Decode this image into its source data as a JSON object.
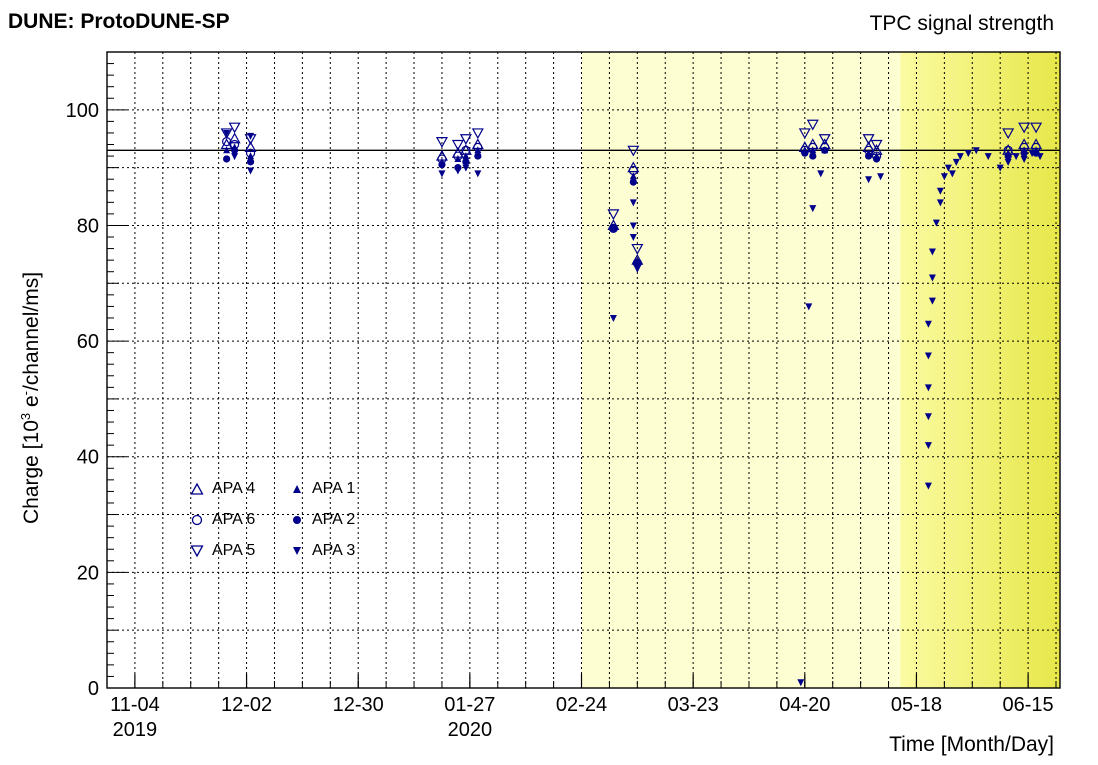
{
  "header": {
    "left_title": "DUNE: ProtoDUNE-SP",
    "right_title": "TPC signal strength"
  },
  "colors": {
    "marker": "#00008b",
    "frame": "#000000",
    "band_light": "#fefed3",
    "band_mid": "#fbfba5",
    "band_gradient_end": "#e7e74a"
  },
  "chart_data": {
    "type": "scatter",
    "xlabel": "Time [Month/Day]",
    "ylabel": "Charge [10³ e⁻/channel/ms]",
    "ylabel_parts": {
      "pre": "Charge [10",
      "sup1": "3",
      "mid": " e",
      "sup2": "-",
      "post": "/channel/ms]"
    },
    "x_axis_type": "date",
    "xlim": [
      "2019-10-28",
      "2020-06-23"
    ],
    "ylim": [
      0,
      110
    ],
    "grid": true,
    "x_ticks": [
      {
        "date": "2019-11-04",
        "label": "11-04",
        "year": "2019"
      },
      {
        "date": "2019-12-02",
        "label": "12-02"
      },
      {
        "date": "2019-12-30",
        "label": "12-30"
      },
      {
        "date": "2020-01-27",
        "label": "01-27",
        "year": "2020"
      },
      {
        "date": "2020-02-24",
        "label": "02-24"
      },
      {
        "date": "2020-03-23",
        "label": "03-23"
      },
      {
        "date": "2020-04-20",
        "label": "04-20"
      },
      {
        "date": "2020-05-18",
        "label": "05-18"
      },
      {
        "date": "2020-06-15",
        "label": "06-15"
      }
    ],
    "y_ticks": [
      0,
      20,
      40,
      60,
      80,
      100
    ],
    "reference_line": 93,
    "shaded_regions": [
      {
        "from": "2020-02-24",
        "to": "2020-05-14",
        "style": "light"
      },
      {
        "from": "2020-05-14",
        "to": "2020-06-23",
        "style": "gradient"
      }
    ],
    "legend_position": "lower-left",
    "series": [
      {
        "name": "APA 4",
        "marker": "triangle-up-open",
        "points": [
          [
            "2019-11-27",
            94
          ],
          [
            "2019-11-29",
            95
          ],
          [
            "2019-12-03",
            93.5
          ],
          [
            "2020-01-20",
            92
          ],
          [
            "2020-01-24",
            92.5
          ],
          [
            "2020-01-26",
            93
          ],
          [
            "2020-01-29",
            94
          ],
          [
            "2020-03-03",
            80
          ],
          [
            "2020-03-08",
            90
          ],
          [
            "2020-03-09",
            74
          ],
          [
            "2020-04-20",
            93.5
          ],
          [
            "2020-04-22",
            94
          ],
          [
            "2020-04-25",
            94
          ],
          [
            "2020-05-06",
            93.5
          ],
          [
            "2020-05-08",
            93
          ],
          [
            "2020-06-10",
            93
          ],
          [
            "2020-06-14",
            94
          ],
          [
            "2020-06-17",
            94
          ]
        ]
      },
      {
        "name": "APA 6",
        "marker": "circle-open",
        "points": [
          [
            "2019-11-27",
            94.5
          ],
          [
            "2019-11-29",
            94
          ],
          [
            "2019-12-03",
            92.5
          ],
          [
            "2020-01-20",
            91.5
          ],
          [
            "2020-01-24",
            92
          ],
          [
            "2020-01-26",
            93
          ],
          [
            "2020-01-29",
            93.5
          ],
          [
            "2020-03-03",
            79.5
          ],
          [
            "2020-03-08",
            89.5
          ],
          [
            "2020-03-09",
            73.5
          ],
          [
            "2020-04-20",
            93
          ],
          [
            "2020-04-22",
            93.5
          ],
          [
            "2020-04-25",
            93.5
          ],
          [
            "2020-05-06",
            93
          ],
          [
            "2020-05-08",
            92
          ],
          [
            "2020-06-10",
            93
          ],
          [
            "2020-06-14",
            93.5
          ],
          [
            "2020-06-17",
            93.5
          ]
        ]
      },
      {
        "name": "APA 5",
        "marker": "triangle-down-open",
        "points": [
          [
            "2019-11-27",
            96
          ],
          [
            "2019-11-29",
            97
          ],
          [
            "2019-12-03",
            95
          ],
          [
            "2020-01-20",
            94.5
          ],
          [
            "2020-01-24",
            94
          ],
          [
            "2020-01-26",
            95
          ],
          [
            "2020-01-29",
            96
          ],
          [
            "2020-03-03",
            82
          ],
          [
            "2020-03-08",
            93
          ],
          [
            "2020-03-09",
            76
          ],
          [
            "2020-04-20",
            96
          ],
          [
            "2020-04-22",
            97.5
          ],
          [
            "2020-04-25",
            95
          ],
          [
            "2020-05-06",
            95
          ],
          [
            "2020-05-08",
            94
          ],
          [
            "2020-06-10",
            96
          ],
          [
            "2020-06-14",
            97
          ],
          [
            "2020-06-17",
            97
          ]
        ]
      },
      {
        "name": "APA 1",
        "marker": "triangle-up-filled",
        "points": [
          [
            "2019-11-27",
            93
          ],
          [
            "2019-11-29",
            93.5
          ],
          [
            "2019-12-03",
            92
          ],
          [
            "2020-01-20",
            91
          ],
          [
            "2020-01-24",
            91.5
          ],
          [
            "2020-01-26",
            92
          ],
          [
            "2020-01-29",
            93
          ],
          [
            "2020-03-03",
            79.5
          ],
          [
            "2020-03-08",
            88.5
          ],
          [
            "2020-03-09",
            73.5
          ],
          [
            "2020-04-20",
            93
          ],
          [
            "2020-04-22",
            93
          ],
          [
            "2020-04-25",
            93
          ],
          [
            "2020-05-06",
            92.5
          ],
          [
            "2020-05-08",
            92
          ],
          [
            "2020-06-10",
            92.5
          ],
          [
            "2020-06-14",
            93
          ],
          [
            "2020-06-17",
            93
          ]
        ]
      },
      {
        "name": "APA 2",
        "marker": "circle-filled",
        "points": [
          [
            "2019-11-27",
            91.5
          ],
          [
            "2019-11-29",
            93
          ],
          [
            "2019-12-03",
            91
          ],
          [
            "2020-01-20",
            90.5
          ],
          [
            "2020-01-24",
            90
          ],
          [
            "2020-01-26",
            91
          ],
          [
            "2020-01-29",
            92
          ],
          [
            "2020-03-03",
            79.5
          ],
          [
            "2020-03-08",
            87.5
          ],
          [
            "2020-03-09",
            73.5
          ],
          [
            "2020-04-20",
            92.5
          ],
          [
            "2020-04-22",
            92
          ],
          [
            "2020-04-25",
            93
          ],
          [
            "2020-05-06",
            92
          ],
          [
            "2020-05-08",
            91.5
          ],
          [
            "2020-06-10",
            92
          ],
          [
            "2020-06-14",
            92.5
          ],
          [
            "2020-06-17",
            92.5
          ]
        ]
      },
      {
        "name": "APA 3",
        "marker": "triangle-down-filled",
        "points": [
          [
            "2019-11-27",
            96
          ],
          [
            "2019-11-29",
            92
          ],
          [
            "2019-12-03",
            95.5
          ],
          [
            "2019-12-03",
            89.5
          ],
          [
            "2020-01-20",
            89
          ],
          [
            "2020-01-24",
            89.5
          ],
          [
            "2020-01-26",
            90
          ],
          [
            "2020-01-29",
            89
          ],
          [
            "2020-03-03",
            64
          ],
          [
            "2020-03-08",
            84
          ],
          [
            "2020-03-08",
            80
          ],
          [
            "2020-03-08",
            78
          ],
          [
            "2020-03-09",
            72.5
          ],
          [
            "2020-04-19",
            1
          ],
          [
            "2020-04-21",
            66
          ],
          [
            "2020-04-22",
            83
          ],
          [
            "2020-04-24",
            89
          ],
          [
            "2020-05-06",
            88
          ],
          [
            "2020-05-09",
            88.5
          ],
          [
            "2020-05-21",
            35
          ],
          [
            "2020-05-21",
            42
          ],
          [
            "2020-05-21",
            47
          ],
          [
            "2020-05-21",
            52
          ],
          [
            "2020-05-21",
            57.5
          ],
          [
            "2020-05-21",
            63
          ],
          [
            "2020-05-22",
            67
          ],
          [
            "2020-05-22",
            71
          ],
          [
            "2020-05-22",
            75.5
          ],
          [
            "2020-05-23",
            80.5
          ],
          [
            "2020-05-24",
            84
          ],
          [
            "2020-05-24",
            86
          ],
          [
            "2020-05-25",
            88.5
          ],
          [
            "2020-05-26",
            90
          ],
          [
            "2020-05-27",
            89
          ],
          [
            "2020-05-28",
            91
          ],
          [
            "2020-05-29",
            92
          ],
          [
            "2020-05-31",
            92.5
          ],
          [
            "2020-06-02",
            93
          ],
          [
            "2020-06-05",
            92
          ],
          [
            "2020-06-08",
            90
          ],
          [
            "2020-06-10",
            91
          ],
          [
            "2020-06-12",
            92
          ],
          [
            "2020-06-14",
            91.5
          ],
          [
            "2020-06-16",
            92.5
          ],
          [
            "2020-06-18",
            92
          ]
        ]
      }
    ]
  }
}
